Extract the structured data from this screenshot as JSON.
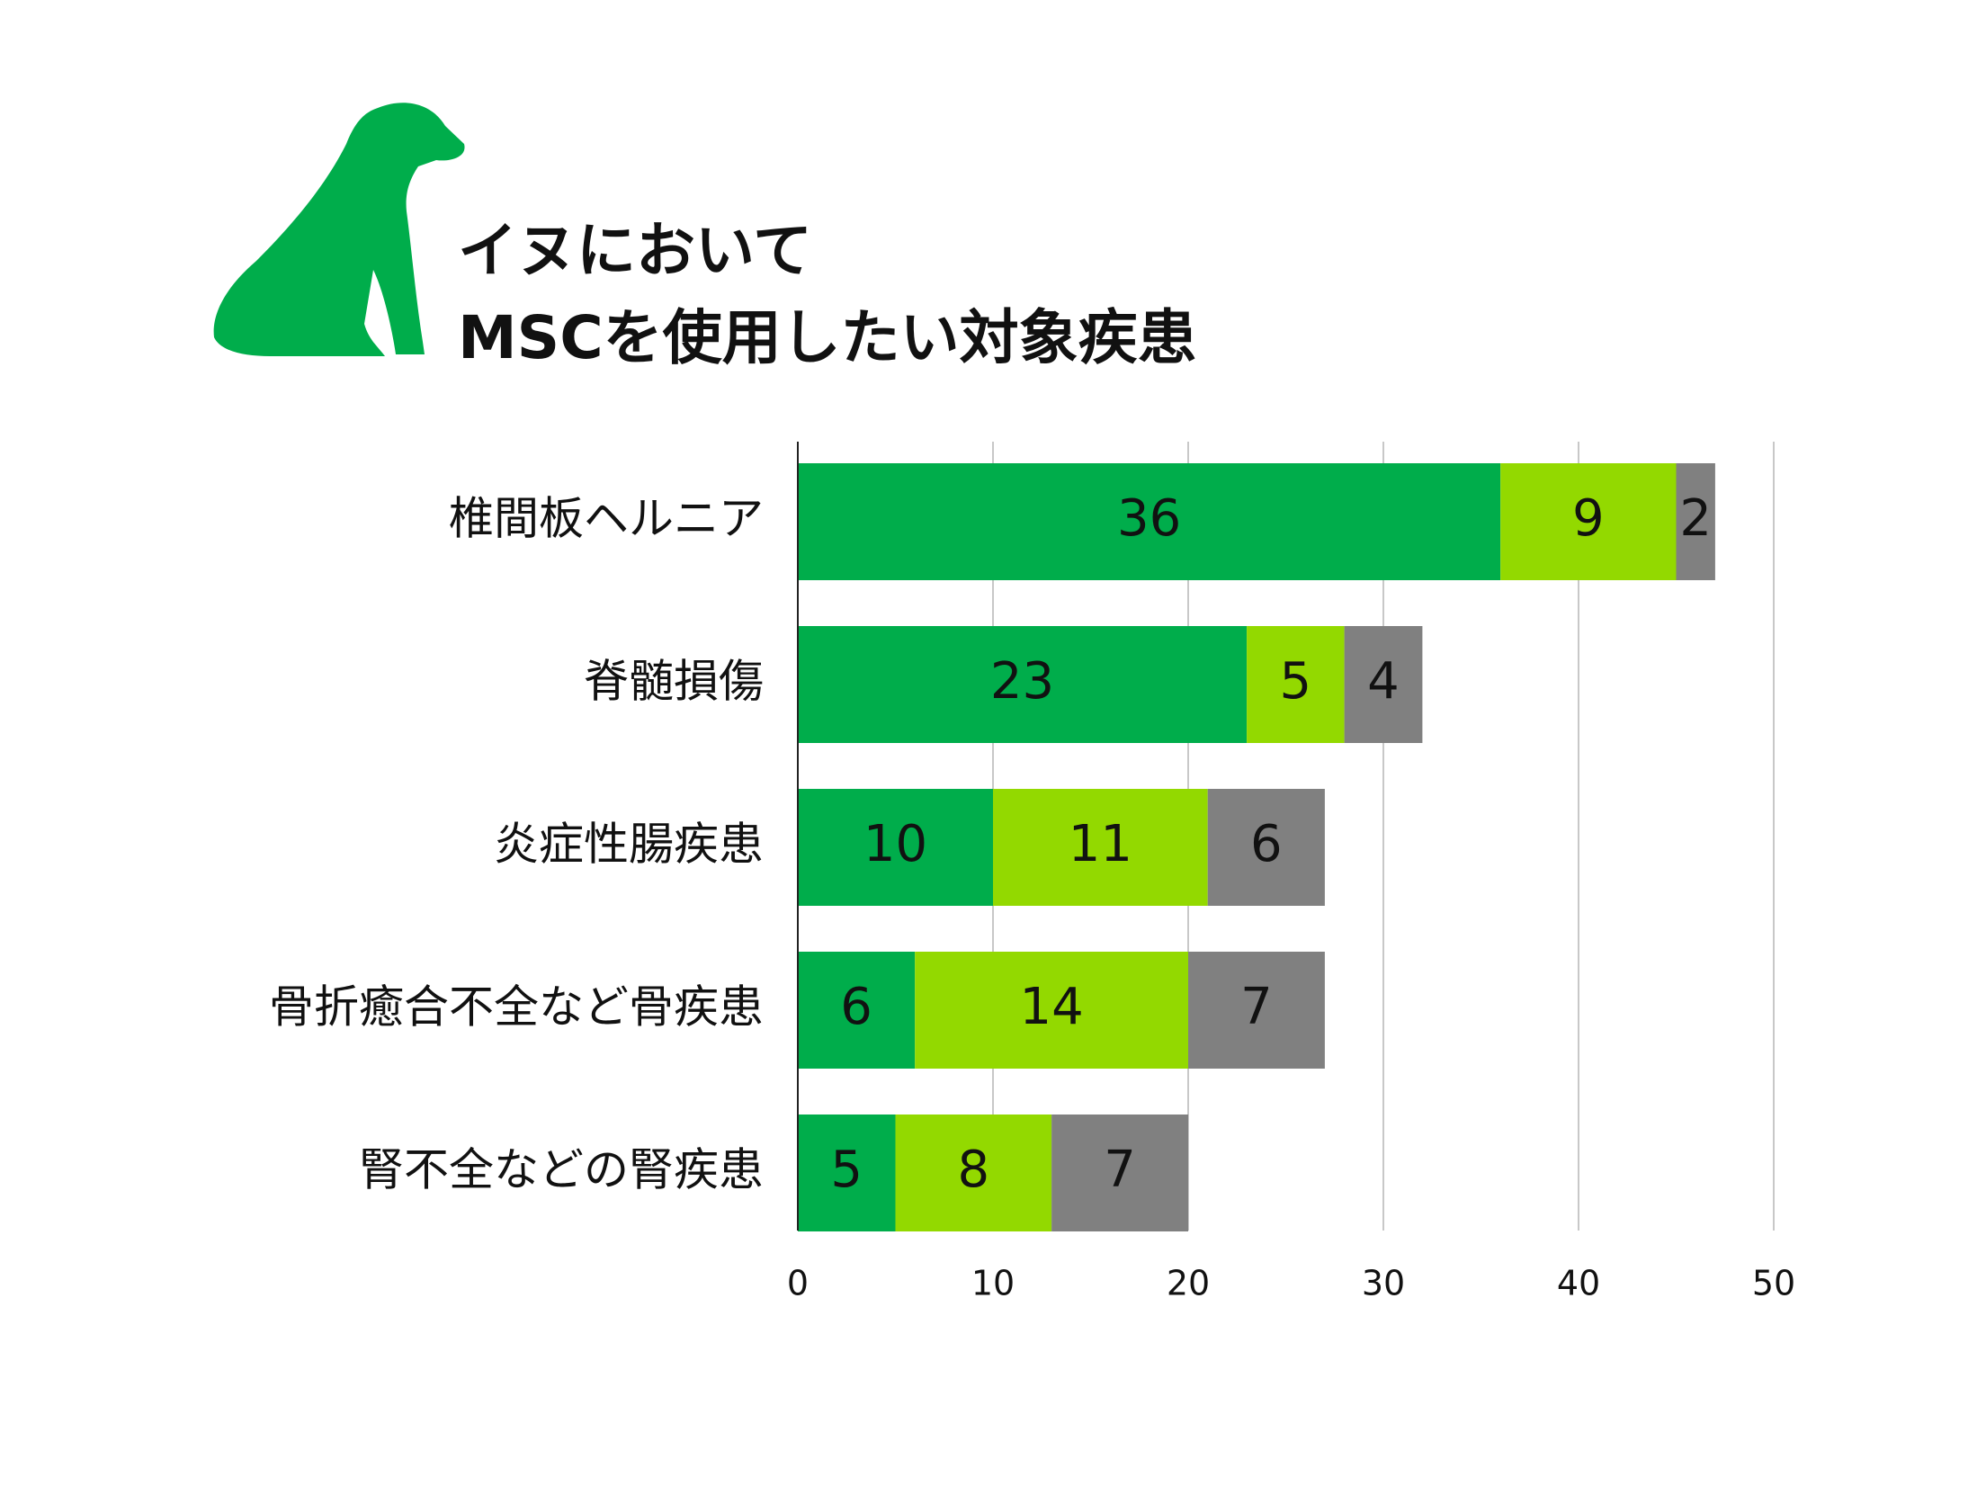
{
  "chart_data": {
    "type": "stacked_bar_horizontal",
    "title": [
      "イヌにおいて",
      "MSCを使用したい対象疾患"
    ],
    "categories": [
      "椎間板ヘルニア",
      "脊髄損傷",
      "炎症性腸疾患",
      "骨折癒合不全など骨疾患",
      "腎不全などの腎疾患"
    ],
    "series": [
      {
        "color": "#00ad4b",
        "values": [
          36,
          23,
          10,
          6,
          5
        ]
      },
      {
        "color": "#93d900",
        "values": [
          9,
          5,
          11,
          14,
          8
        ]
      },
      {
        "color": "#808080",
        "values": [
          2,
          4,
          6,
          7,
          7
        ]
      }
    ],
    "xlim": [
      0,
      50
    ],
    "xticks": [
      0,
      10,
      20,
      30,
      40,
      50
    ],
    "grid": true
  }
}
